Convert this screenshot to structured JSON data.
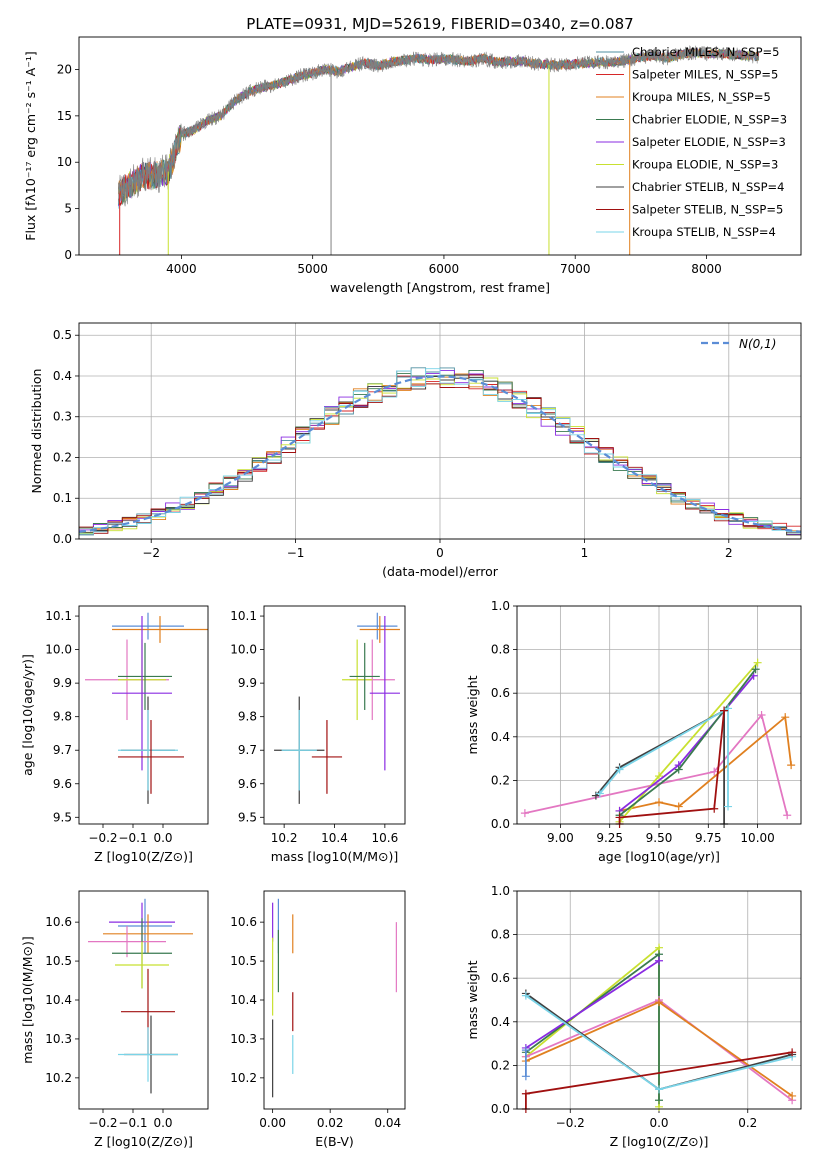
{
  "figure_title": "PLATE=0931, MJD=52619, FIBERID=0340, z=0.087",
  "colors": {
    "chabrier_miles": "#4f8fa0",
    "salpeter_miles": "#d62728",
    "kroupa_miles": "#e08020",
    "chabrier_elodie": "#3a7a50",
    "salpeter_elodie": "#8a2be2",
    "kroupa_elodie": "#c8e030",
    "chabrier_stelib": "#404040",
    "salpeter_stelib": "#a01010",
    "kroupa_stelib": "#7ad4e8",
    "data_gray": "#808080",
    "normal_dash": "#5b8dd6",
    "pink": "#e377c2",
    "blue": "#5b8dd6"
  },
  "chart_data": [
    {
      "type": "line",
      "panel": "spectrum",
      "xlabel": "wavelength [Angstrom, rest frame]",
      "ylabel": "Flux [fλ10⁻¹⁷ erg cm⁻² s⁻¹ A⁻¹]",
      "xlim": [
        3220,
        8720
      ],
      "ylim": [
        0,
        23.5
      ],
      "xticks": [
        4000,
        5000,
        6000,
        7000,
        8000
      ],
      "yticks": [
        0,
        5,
        10,
        15,
        20
      ],
      "legend": "top-right",
      "continuum": {
        "x": [
          3520,
          3600,
          3700,
          3800,
          3900,
          4000,
          4100,
          4200,
          4300,
          4400,
          4500,
          4600,
          4700,
          4800,
          4900,
          5000,
          5100,
          5200,
          5300,
          5400,
          5500,
          5600,
          5700,
          5800,
          5900,
          6000,
          6100,
          6200,
          6300,
          6400,
          6500,
          6600,
          6700,
          6800,
          6900,
          7000,
          7100,
          7200,
          7300,
          7400,
          7500,
          7600,
          7700,
          7800,
          7900,
          8000,
          8100,
          8200,
          8300,
          8400
        ],
        "y": [
          6.5,
          7.5,
          8.5,
          8.6,
          9.0,
          13.0,
          13.5,
          14.5,
          15.0,
          16.5,
          17.5,
          18.0,
          18.3,
          18.7,
          19.3,
          19.6,
          20.0,
          19.8,
          20.3,
          20.7,
          20.4,
          20.8,
          21.0,
          21.2,
          21.0,
          21.2,
          21.0,
          20.9,
          21.2,
          20.8,
          20.8,
          20.9,
          20.6,
          20.5,
          20.5,
          20.6,
          20.7,
          20.8,
          20.8,
          21.0,
          21.3,
          21.5,
          21.2,
          21.6,
          21.8,
          21.7,
          21.7,
          21.6,
          21.5,
          21.4
        ]
      },
      "series": [
        {
          "name": "Chabrier MILES, N_SSP=5",
          "color_key": "chabrier_miles"
        },
        {
          "name": "Salpeter MILES, N_SSP=5",
          "color_key": "salpeter_miles"
        },
        {
          "name": "Kroupa MILES, N_SSP=5",
          "color_key": "kroupa_miles"
        },
        {
          "name": "Chabrier ELODIE, N_SSP=3",
          "color_key": "chabrier_elodie"
        },
        {
          "name": "Salpeter ELODIE, N_SSP=3",
          "color_key": "salpeter_elodie"
        },
        {
          "name": "Kroupa ELODIE, N_SSP=3",
          "color_key": "kroupa_elodie"
        },
        {
          "name": "Chabrier STELIB, N_SSP=4",
          "color_key": "chabrier_stelib"
        },
        {
          "name": "Salpeter STELIB, N_SSP=5",
          "color_key": "salpeter_stelib"
        },
        {
          "name": "Kroupa STELIB, N_SSP=4",
          "color_key": "kroupa_stelib"
        }
      ]
    },
    {
      "type": "histogram",
      "panel": "residuals",
      "xlabel": "(data-model)/error",
      "ylabel": "Normed distribution",
      "xlim": [
        -2.5,
        2.5
      ],
      "ylim": [
        0,
        0.53
      ],
      "xticks": [
        -2,
        -1,
        0,
        1,
        2
      ],
      "yticks": [
        0.0,
        0.1,
        0.2,
        0.3,
        0.4,
        0.5
      ],
      "grid": true,
      "legend": "top-right",
      "legend_label": "N(0,1)",
      "bin_width": 0.1,
      "bins_start": -2.5,
      "base_values": [
        0.02,
        0.025,
        0.03,
        0.04,
        0.045,
        0.05,
        0.055,
        0.065,
        0.075,
        0.085,
        0.095,
        0.105,
        0.115,
        0.13,
        0.14,
        0.155,
        0.17,
        0.19,
        0.205,
        0.225,
        0.245,
        0.26,
        0.28,
        0.295,
        0.315,
        0.33,
        0.345,
        0.36,
        0.37,
        0.385,
        0.39,
        0.395,
        0.4,
        0.41,
        0.4,
        0.405,
        0.4,
        0.395,
        0.385,
        0.375,
        0.365,
        0.35,
        0.335,
        0.315,
        0.3,
        0.28,
        0.26,
        0.245,
        0.225,
        0.205,
        0.19,
        0.17,
        0.155,
        0.14,
        0.125,
        0.11,
        0.1,
        0.085,
        0.075,
        0.065,
        0.055,
        0.05,
        0.045,
        0.04,
        0.035,
        0.03,
        0.025,
        0.02,
        0.02,
        0.018,
        0.02,
        0.018,
        0.02,
        0.018,
        0.02,
        0.02,
        0.018,
        0.02,
        0.02,
        0.02
      ]
    },
    {
      "type": "scatter",
      "panel": "age_vs_Z",
      "xlabel": "Z [log10(Z/Z⊙)]",
      "ylabel": "age [log10(age/yr)]",
      "xlim": [
        -0.28,
        0.15
      ],
      "ylim": [
        9.48,
        10.13
      ],
      "xticks": [
        -0.2,
        -0.1,
        0.0
      ],
      "yticks": [
        9.5,
        9.6,
        9.7,
        9.8,
        9.9,
        10.0,
        10.1
      ],
      "points": [
        {
          "color_key": "blue",
          "x": -0.05,
          "xerr": 0.12,
          "y": 10.07,
          "yerr": 0.04
        },
        {
          "color_key": "kroupa_miles",
          "x": -0.01,
          "xerr": 0.16,
          "y": 10.06,
          "yerr": 0.04
        },
        {
          "color_key": "pink",
          "x": -0.12,
          "xerr": 0.14,
          "y": 9.91,
          "yerr": 0.12
        },
        {
          "color_key": "kroupa_elodie",
          "x": -0.07,
          "xerr": 0.08,
          "y": 9.91,
          "yerr": 0.12
        },
        {
          "color_key": "chabrier_elodie",
          "x": -0.06,
          "xerr": 0.09,
          "y": 9.92,
          "yerr": 0.1
        },
        {
          "color_key": "salpeter_elodie",
          "x": -0.07,
          "xerr": 0.1,
          "y": 9.87,
          "yerr": 0.23
        },
        {
          "color_key": "chabrier_stelib",
          "x": -0.05,
          "xerr": 0.09,
          "y": 9.7,
          "yerr": 0.16
        },
        {
          "color_key": "kroupa_stelib",
          "x": -0.05,
          "xerr": 0.1,
          "y": 9.7,
          "yerr": 0.12
        },
        {
          "color_key": "salpeter_stelib",
          "x": -0.04,
          "xerr": 0.11,
          "y": 9.68,
          "yerr": 0.11
        }
      ]
    },
    {
      "type": "scatter",
      "panel": "age_vs_mass",
      "xlabel": "mass [log10(M/M⊙)]",
      "ylabel": "",
      "xlim": [
        10.12,
        10.68
      ],
      "ylim": [
        9.48,
        10.13
      ],
      "xticks": [
        10.2,
        10.4,
        10.6
      ],
      "yticks": [
        9.5,
        9.6,
        9.7,
        9.8,
        9.9,
        10.0,
        10.1
      ],
      "points": [
        {
          "color_key": "blue",
          "x": 10.57,
          "xerr": 0.08,
          "y": 10.07,
          "yerr": 0.04
        },
        {
          "color_key": "kroupa_miles",
          "x": 10.58,
          "xerr": 0.08,
          "y": 10.06,
          "yerr": 0.04
        },
        {
          "color_key": "pink",
          "x": 10.55,
          "xerr": 0.09,
          "y": 9.91,
          "yerr": 0.12
        },
        {
          "color_key": "kroupa_elodie",
          "x": 10.49,
          "xerr": 0.06,
          "y": 9.91,
          "yerr": 0.12
        },
        {
          "color_key": "chabrier_elodie",
          "x": 10.52,
          "xerr": 0.06,
          "y": 9.92,
          "yerr": 0.1
        },
        {
          "color_key": "salpeter_elodie",
          "x": 10.6,
          "xerr": 0.06,
          "y": 9.87,
          "yerr": 0.23
        },
        {
          "color_key": "chabrier_stelib",
          "x": 10.26,
          "xerr": 0.1,
          "y": 9.7,
          "yerr": 0.16
        },
        {
          "color_key": "kroupa_stelib",
          "x": 10.26,
          "xerr": 0.07,
          "y": 9.7,
          "yerr": 0.12
        },
        {
          "color_key": "salpeter_stelib",
          "x": 10.37,
          "xerr": 0.06,
          "y": 9.68,
          "yerr": 0.11
        }
      ]
    },
    {
      "type": "line",
      "panel": "weight_vs_age",
      "xlabel": "age [log10(age/yr)]",
      "ylabel": "mass weight",
      "xlim": [
        8.78,
        10.22
      ],
      "ylim": [
        0,
        1
      ],
      "xticks": [
        9.0,
        9.25,
        9.5,
        9.75,
        10.0
      ],
      "xtick_labels": [
        "9.00",
        "9.25",
        "9.50",
        "9.75",
        "10.00"
      ],
      "yticks": [
        0.0,
        0.2,
        0.4,
        0.6,
        0.8,
        1.0
      ],
      "grid": true,
      "series": [
        {
          "color_key": "pink",
          "x": [
            8.82,
            9.78,
            10.02,
            10.15
          ],
          "y": [
            0.05,
            0.24,
            0.5,
            0.04
          ]
        },
        {
          "color_key": "kroupa_miles",
          "x": [
            9.3,
            9.5,
            9.6,
            10.14,
            10.17
          ],
          "y": [
            0.06,
            0.1,
            0.08,
            0.49,
            0.27
          ]
        },
        {
          "color_key": "kroupa_elodie",
          "x": [
            9.3,
            9.5,
            10.0
          ],
          "y": [
            0.01,
            0.22,
            0.74
          ]
        },
        {
          "color_key": "salpeter_elodie",
          "x": [
            9.3,
            9.6,
            9.98
          ],
          "y": [
            0.06,
            0.27,
            0.68
          ]
        },
        {
          "color_key": "chabrier_elodie",
          "x": [
            9.3,
            9.6,
            9.99
          ],
          "y": [
            0.04,
            0.25,
            0.71
          ]
        },
        {
          "color_key": "chabrier_stelib",
          "x": [
            9.18,
            9.3,
            9.83,
            9.83
          ],
          "y": [
            0.13,
            0.26,
            0.52,
            0.0
          ]
        },
        {
          "color_key": "kroupa_stelib",
          "x": [
            9.2,
            9.3,
            9.85,
            9.85
          ],
          "y": [
            0.14,
            0.25,
            0.53,
            0.08
          ]
        },
        {
          "color_key": "salpeter_stelib",
          "x": [
            9.3,
            9.3,
            9.78,
            9.83
          ],
          "y": [
            0.0,
            0.03,
            0.07,
            0.52
          ]
        }
      ]
    },
    {
      "type": "scatter",
      "panel": "mass_vs_Z",
      "xlabel": "Z [log10(Z/Z⊙)]",
      "ylabel": "mass [log10(M/M⊙)]",
      "xlim": [
        -0.28,
        0.15
      ],
      "ylim": [
        10.12,
        10.68
      ],
      "xticks": [
        -0.2,
        -0.1,
        0.0
      ],
      "yticks": [
        10.2,
        10.3,
        10.4,
        10.5,
        10.6
      ],
      "points": [
        {
          "color_key": "salpeter_elodie",
          "x": -0.07,
          "xerr": 0.11,
          "y": 10.6,
          "yerr": 0.05
        },
        {
          "color_key": "blue",
          "x": -0.06,
          "xerr": 0.09,
          "y": 10.59,
          "yerr": 0.07
        },
        {
          "color_key": "kroupa_miles",
          "x": -0.05,
          "xerr": 0.15,
          "y": 10.57,
          "yerr": 0.05
        },
        {
          "color_key": "pink",
          "x": -0.12,
          "xerr": 0.13,
          "y": 10.55,
          "yerr": 0.04
        },
        {
          "color_key": "chabrier_elodie",
          "x": -0.07,
          "xerr": 0.1,
          "y": 10.52,
          "yerr": 0.09
        },
        {
          "color_key": "kroupa_elodie",
          "x": -0.07,
          "xerr": 0.09,
          "y": 10.49,
          "yerr": 0.06
        },
        {
          "color_key": "salpeter_stelib",
          "x": -0.05,
          "xerr": 0.09,
          "y": 10.37,
          "yerr": 0.11
        },
        {
          "color_key": "chabrier_stelib",
          "x": -0.04,
          "xerr": 0.09,
          "y": 10.26,
          "yerr": 0.1
        },
        {
          "color_key": "kroupa_stelib",
          "x": -0.05,
          "xerr": 0.1,
          "y": 10.26,
          "yerr": 0.07
        }
      ]
    },
    {
      "type": "scatter",
      "panel": "mass_vs_ebv",
      "xlabel": "E(B-V)",
      "ylabel": "",
      "xlim": [
        -0.003,
        0.046
      ],
      "ylim": [
        10.12,
        10.68
      ],
      "xticks": [
        0.0,
        0.02,
        0.04
      ],
      "xtick_labels": [
        "0.00",
        "0.02",
        "0.04"
      ],
      "yticks": [
        10.2,
        10.3,
        10.4,
        10.5,
        10.6
      ],
      "points": [
        {
          "color_key": "salpeter_elodie",
          "x": 0.0,
          "xerr": 0,
          "y": 10.6,
          "yerr": 0.05
        },
        {
          "color_key": "blue",
          "x": 0.002,
          "xerr": 0,
          "y": 10.59,
          "yerr": 0.07
        },
        {
          "color_key": "kroupa_miles",
          "x": 0.007,
          "xerr": 0,
          "y": 10.57,
          "yerr": 0.05
        },
        {
          "color_key": "pink",
          "x": 0.043,
          "xerr": 0,
          "y": 10.51,
          "yerr": 0.09
        },
        {
          "color_key": "chabrier_elodie",
          "x": 0.002,
          "xerr": 0,
          "y": 10.5,
          "yerr": 0.08
        },
        {
          "color_key": "kroupa_elodie",
          "x": 0.0,
          "xerr": 0,
          "y": 10.46,
          "yerr": 0.1
        },
        {
          "color_key": "salpeter_stelib",
          "x": 0.007,
          "xerr": 0,
          "y": 10.37,
          "yerr": 0.05
        },
        {
          "color_key": "chabrier_stelib",
          "x": 0.0,
          "xerr": 0,
          "y": 10.25,
          "yerr": 0.1
        },
        {
          "color_key": "kroupa_stelib",
          "x": 0.007,
          "xerr": 0,
          "y": 10.26,
          "yerr": 0.05
        }
      ]
    },
    {
      "type": "line",
      "panel": "weight_vs_Z",
      "xlabel": "Z [log10(Z/Z⊙)]",
      "ylabel": "mass weight",
      "xlim": [
        -0.32,
        0.32
      ],
      "ylim": [
        0,
        1
      ],
      "xticks": [
        -0.2,
        0.0,
        0.2
      ],
      "yticks": [
        0.0,
        0.2,
        0.4,
        0.6,
        0.8,
        1.0
      ],
      "grid": true,
      "series": [
        {
          "color_key": "kroupa_elodie",
          "x": [
            -0.3,
            0.0,
            0.0
          ],
          "y": [
            0.24,
            0.74,
            0.01
          ]
        },
        {
          "color_key": "chabrier_elodie",
          "x": [
            -0.3,
            0.0,
            0.0
          ],
          "y": [
            0.26,
            0.71,
            0.04
          ]
        },
        {
          "color_key": "salpeter_elodie",
          "x": [
            -0.3,
            0.0
          ],
          "y": [
            0.28,
            0.68
          ]
        },
        {
          "color_key": "pink",
          "x": [
            -0.3,
            0.0,
            0.3
          ],
          "y": [
            0.24,
            0.5,
            0.04
          ]
        },
        {
          "color_key": "kroupa_miles",
          "x": [
            -0.3,
            0.0,
            0.3
          ],
          "y": [
            0.22,
            0.49,
            0.06
          ]
        },
        {
          "color_key": "chabrier_stelib",
          "x": [
            -0.3,
            0.0,
            0.3
          ],
          "y": [
            0.53,
            0.09,
            0.25
          ]
        },
        {
          "color_key": "kroupa_stelib",
          "x": [
            -0.3,
            0.0,
            0.3
          ],
          "y": [
            0.52,
            0.09,
            0.24
          ]
        },
        {
          "color_key": "salpeter_stelib",
          "x": [
            -0.3,
            -0.3,
            0.3
          ],
          "y": [
            0.0,
            0.07,
            0.26
          ]
        },
        {
          "color_key": "blue",
          "x": [
            -0.3,
            -0.3
          ],
          "y": [
            0.15,
            0.27
          ]
        }
      ]
    }
  ]
}
